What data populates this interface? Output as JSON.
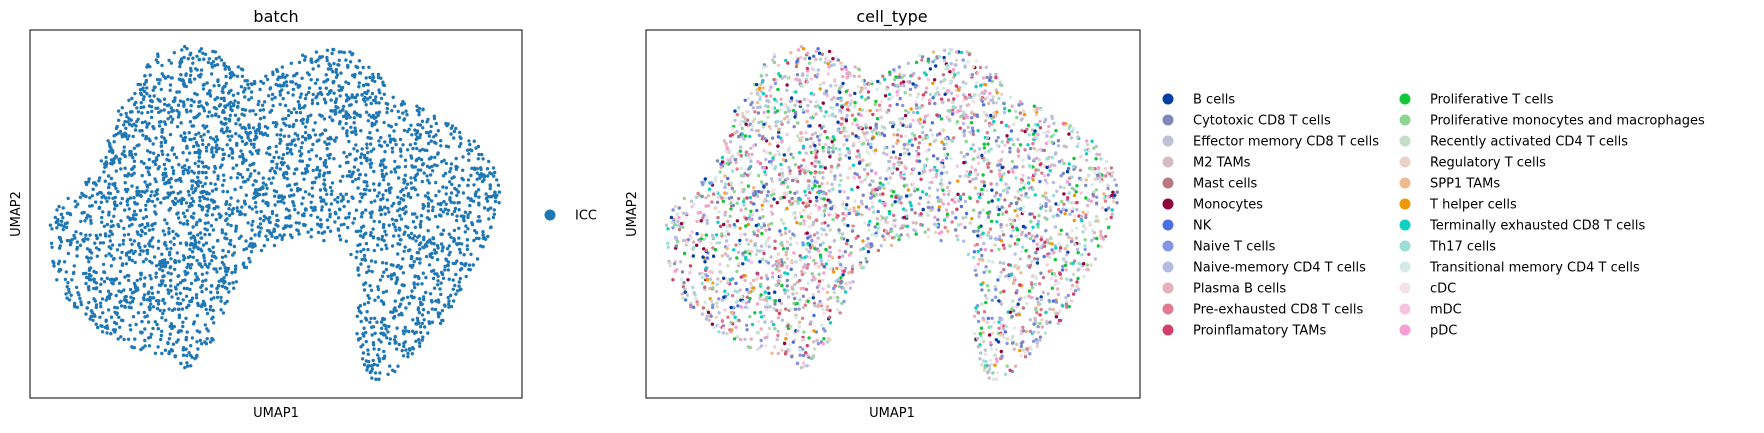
{
  "chart_data": [
    {
      "type": "scatter",
      "title": "batch",
      "xlabel": "UMAP1",
      "ylabel": "UMAP2",
      "xlim": [
        0,
        1
      ],
      "ylim": [
        0,
        1
      ],
      "grid": false,
      "ticks": "none",
      "legend_placement": "right",
      "point_color": "#1f77b4",
      "series": [
        {
          "name": "ICC",
          "color": "#1f77b4"
        }
      ]
    },
    {
      "type": "scatter",
      "title": "cell_type",
      "xlabel": "UMAP1",
      "ylabel": "UMAP2",
      "xlim": [
        0,
        1
      ],
      "ylim": [
        0,
        1
      ],
      "grid": false,
      "ticks": "none",
      "legend_placement": "right",
      "legend_columns": 2,
      "series": [
        {
          "name": "B cells",
          "color": "#023fa5"
        },
        {
          "name": "Cytotoxic CD8 T cells",
          "color": "#7d87b9"
        },
        {
          "name": "Effector memory CD8 T cells",
          "color": "#bec1d4"
        },
        {
          "name": "M2 TAMs",
          "color": "#d6bcc0"
        },
        {
          "name": "Mast cells",
          "color": "#bb7784"
        },
        {
          "name": "Monocytes",
          "color": "#8e063b"
        },
        {
          "name": "NK",
          "color": "#4a6fe3"
        },
        {
          "name": "Naive T cells",
          "color": "#8595e1"
        },
        {
          "name": "Naive-memory CD4 T cells",
          "color": "#b5bbe3"
        },
        {
          "name": "Plasma B cells",
          "color": "#e6afb9"
        },
        {
          "name": "Pre-exhausted CD8 T cells",
          "color": "#e07b91"
        },
        {
          "name": "Proinflamatory TAMs",
          "color": "#d33f6a"
        },
        {
          "name": "Proliferative T cells",
          "color": "#11c638"
        },
        {
          "name": "Proliferative monocytes and macrophages",
          "color": "#8dd593"
        },
        {
          "name": "Recently activated CD4 T cells",
          "color": "#c6dec7"
        },
        {
          "name": "Regulatory T cells",
          "color": "#ead3c6"
        },
        {
          "name": "SPP1 TAMs",
          "color": "#f0b98d"
        },
        {
          "name": "T helper cells",
          "color": "#ef9708"
        },
        {
          "name": "Terminally exhausted CD8 T cells",
          "color": "#0fcfc0"
        },
        {
          "name": "Th17 cells",
          "color": "#9cded6"
        },
        {
          "name": "Transitional memory CD4 T cells",
          "color": "#d5eae7"
        },
        {
          "name": "cDC",
          "color": "#f3e1eb"
        },
        {
          "name": "mDC",
          "color": "#f6c4e1"
        },
        {
          "name": "pDC",
          "color": "#f79cd4"
        }
      ]
    }
  ]
}
